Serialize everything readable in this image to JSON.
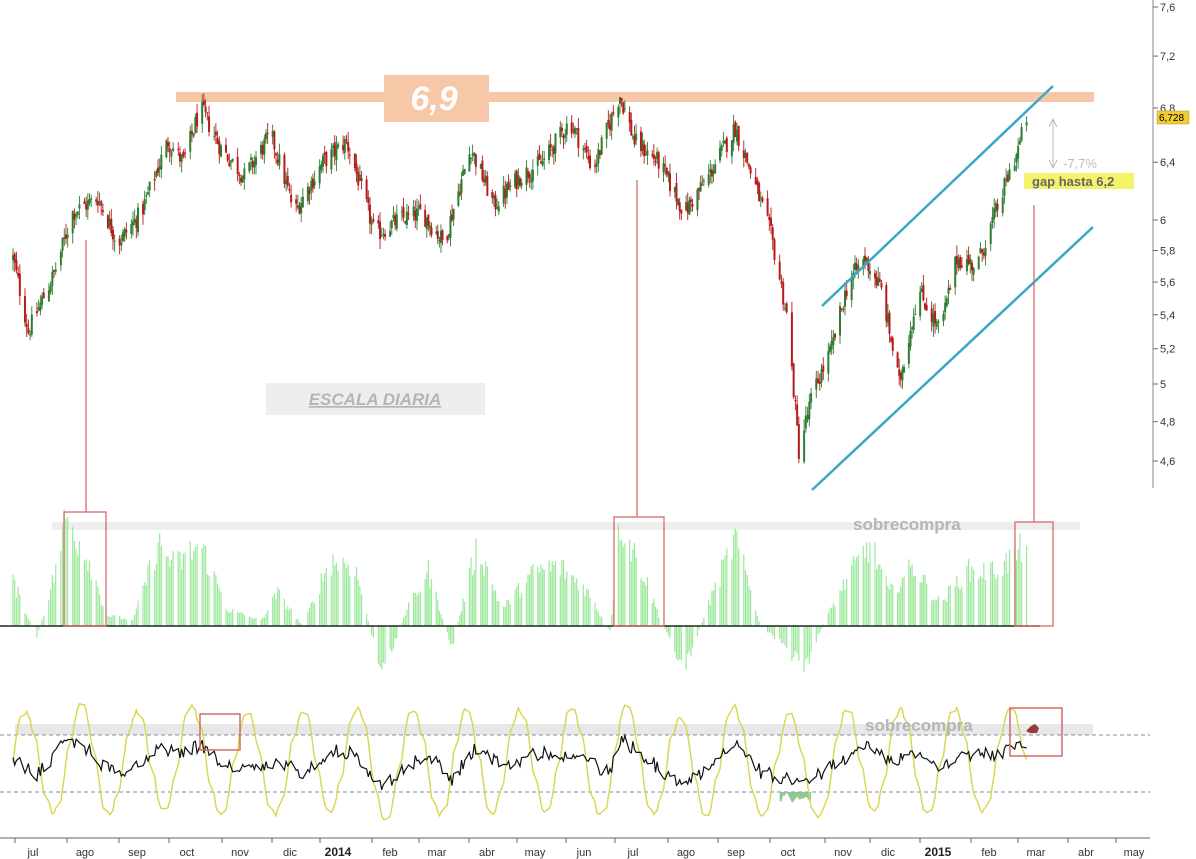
{
  "chart_data": [
    {
      "type": "candlestick",
      "title": "",
      "panel": "price",
      "yaxis": {
        "ticks": [
          "7,6",
          "7,2",
          "6,8",
          "6,4",
          "6",
          "5,8",
          "5,6",
          "5,4",
          "5,2",
          "5",
          "4,8",
          "4,6"
        ],
        "scale": "log",
        "ylim": [
          4.45,
          7.7
        ]
      },
      "xaxis": {
        "ticks": [
          "jul",
          "ago",
          "sep",
          "oct",
          "nov",
          "dic",
          "2014",
          "feb",
          "mar",
          "abr",
          "may",
          "jun",
          "jul",
          "ago",
          "sep",
          "oct",
          "nov",
          "dic",
          "2015",
          "feb",
          "mar",
          "abr",
          "may"
        ],
        "bold_ticks": [
          "2014",
          "2015"
        ]
      },
      "last_price": "6,728",
      "series_close_anchors": [
        {
          "date": "2013-07-01",
          "v": 5.75
        },
        {
          "date": "2013-07-10",
          "v": 5.3
        },
        {
          "date": "2013-07-25",
          "v": 5.65
        },
        {
          "date": "2013-08-05",
          "v": 6.05
        },
        {
          "date": "2013-08-20",
          "v": 6.15
        },
        {
          "date": "2013-09-01",
          "v": 5.85
        },
        {
          "date": "2013-09-15",
          "v": 6.05
        },
        {
          "date": "2013-10-01",
          "v": 6.55
        },
        {
          "date": "2013-10-10",
          "v": 6.4
        },
        {
          "date": "2013-10-20",
          "v": 6.8
        },
        {
          "date": "2013-11-01",
          "v": 6.5
        },
        {
          "date": "2013-11-15",
          "v": 6.3
        },
        {
          "date": "2013-12-01",
          "v": 6.6
        },
        {
          "date": "2013-12-15",
          "v": 6.05
        },
        {
          "date": "2014-01-01",
          "v": 6.4
        },
        {
          "date": "2014-01-15",
          "v": 6.55
        },
        {
          "date": "2014-02-01",
          "v": 5.9
        },
        {
          "date": "2014-02-15",
          "v": 6.0
        },
        {
          "date": "2014-03-01",
          "v": 6.05
        },
        {
          "date": "2014-03-15",
          "v": 5.85
        },
        {
          "date": "2014-04-01",
          "v": 6.5
        },
        {
          "date": "2014-04-15",
          "v": 6.1
        },
        {
          "date": "2014-05-01",
          "v": 6.3
        },
        {
          "date": "2014-05-15",
          "v": 6.4
        },
        {
          "date": "2014-06-01",
          "v": 6.7
        },
        {
          "date": "2014-06-15",
          "v": 6.35
        },
        {
          "date": "2014-07-01",
          "v": 6.9
        },
        {
          "date": "2014-07-10",
          "v": 6.55
        },
        {
          "date": "2014-07-25",
          "v": 6.4
        },
        {
          "date": "2014-08-10",
          "v": 6.05
        },
        {
          "date": "2014-08-25",
          "v": 6.3
        },
        {
          "date": "2014-09-10",
          "v": 6.65
        },
        {
          "date": "2014-09-20",
          "v": 6.3
        },
        {
          "date": "2014-10-01",
          "v": 5.9
        },
        {
          "date": "2014-10-10",
          "v": 5.4
        },
        {
          "date": "2014-10-17",
          "v": 4.65
        },
        {
          "date": "2014-10-25",
          "v": 4.95
        },
        {
          "date": "2014-11-05",
          "v": 5.2
        },
        {
          "date": "2014-11-15",
          "v": 5.6
        },
        {
          "date": "2014-11-25",
          "v": 5.75
        },
        {
          "date": "2014-12-05",
          "v": 5.55
        },
        {
          "date": "2014-12-16",
          "v": 5.0
        },
        {
          "date": "2014-12-28",
          "v": 5.55
        },
        {
          "date": "2015-01-10",
          "v": 5.3
        },
        {
          "date": "2015-01-20",
          "v": 5.75
        },
        {
          "date": "2015-02-01",
          "v": 5.7
        },
        {
          "date": "2015-02-15",
          "v": 6.15
        },
        {
          "date": "2015-02-25",
          "v": 6.5
        },
        {
          "date": "2015-03-02",
          "v": 6.73
        }
      ],
      "annotations": {
        "resistance_label": "6,9",
        "scale_label": "ESCALA DIARIA",
        "pct_label": "-7,7%",
        "gap_label": "gap hasta 6,2"
      },
      "colors": {
        "up": "#2e7d32",
        "down": "#b71c1c",
        "resistance": "#f7c8a8",
        "channel": "#3aa6c8",
        "marker": "#d66a6a",
        "gap_bg": "#f4f46a",
        "price_tag": "#f2cc33"
      }
    },
    {
      "type": "bar",
      "panel": "momentum",
      "label": "sobrecompra",
      "series_anchors": [
        {
          "date": "2013-07-01",
          "v": 0.4
        },
        {
          "date": "2013-07-15",
          "v": -0.1
        },
        {
          "date": "2013-07-25",
          "v": 0.45
        },
        {
          "date": "2013-08-01",
          "v": 1.0
        },
        {
          "date": "2013-08-15",
          "v": 0.6
        },
        {
          "date": "2013-08-25",
          "v": 0.1
        },
        {
          "date": "2013-09-10",
          "v": 0.05
        },
        {
          "date": "2013-09-25",
          "v": 0.75
        },
        {
          "date": "2013-10-05",
          "v": 0.55
        },
        {
          "date": "2013-10-20",
          "v": 0.75
        },
        {
          "date": "2013-11-05",
          "v": 0.15
        },
        {
          "date": "2013-11-25",
          "v": 0.05
        },
        {
          "date": "2013-12-05",
          "v": 0.3
        },
        {
          "date": "2013-12-20",
          "v": 0.0
        },
        {
          "date": "2014-01-05",
          "v": 0.6
        },
        {
          "date": "2014-01-20",
          "v": 0.55
        },
        {
          "date": "2014-02-05",
          "v": -0.45
        },
        {
          "date": "2014-02-20",
          "v": 0.15
        },
        {
          "date": "2014-03-05",
          "v": 0.5
        },
        {
          "date": "2014-03-20",
          "v": -0.2
        },
        {
          "date": "2014-04-05",
          "v": 0.75
        },
        {
          "date": "2014-04-20",
          "v": 0.15
        },
        {
          "date": "2014-05-10",
          "v": 0.5
        },
        {
          "date": "2014-05-25",
          "v": 0.55
        },
        {
          "date": "2014-06-10",
          "v": 0.35
        },
        {
          "date": "2014-06-25",
          "v": -0.05
        },
        {
          "date": "2014-07-01",
          "v": 0.95
        },
        {
          "date": "2014-07-15",
          "v": 0.5
        },
        {
          "date": "2014-07-25",
          "v": 0.1
        },
        {
          "date": "2014-08-10",
          "v": -0.4
        },
        {
          "date": "2014-08-25",
          "v": 0.2
        },
        {
          "date": "2014-09-10",
          "v": 0.8
        },
        {
          "date": "2014-09-25",
          "v": 0.0
        },
        {
          "date": "2014-10-10",
          "v": -0.2
        },
        {
          "date": "2014-10-20",
          "v": -0.4
        },
        {
          "date": "2014-11-01",
          "v": 0.05
        },
        {
          "date": "2014-11-15",
          "v": 0.45
        },
        {
          "date": "2014-11-28",
          "v": 0.75
        },
        {
          "date": "2014-12-10",
          "v": 0.3
        },
        {
          "date": "2014-12-25",
          "v": 0.55
        },
        {
          "date": "2015-01-10",
          "v": 0.2
        },
        {
          "date": "2015-01-25",
          "v": 0.5
        },
        {
          "date": "2015-02-10",
          "v": 0.5
        },
        {
          "date": "2015-02-25",
          "v": 0.65
        },
        {
          "date": "2015-03-02",
          "v": 0.85
        }
      ],
      "colors": {
        "bar": "#9be89b",
        "zero_line": "#222222",
        "band": "#eeeeee",
        "marker": "#d66a6a"
      }
    },
    {
      "type": "line",
      "panel": "oscillator",
      "label": "sobrecompra",
      "series": [
        {
          "key": "black",
          "color": "#111111"
        },
        {
          "key": "yellow",
          "color": "#d8d64a"
        }
      ],
      "colors": {
        "overbought_dash": "#8888aa",
        "fill_oversold": "#7fbf7f",
        "fill_overbought": "#9a3b3b",
        "marker": "#d66a6a",
        "band": "#e8e8e8"
      }
    }
  ]
}
